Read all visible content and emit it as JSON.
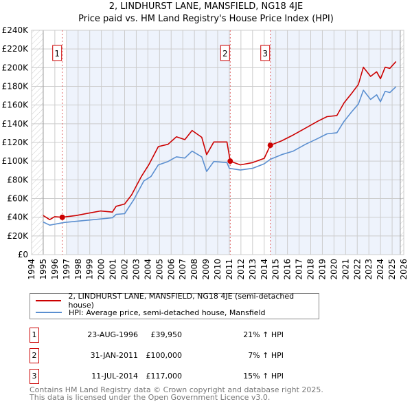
{
  "title_line1": "2, LINDHURST LANE, MANSFIELD, NG18 4JE",
  "title_line2": "Price paid vs. HM Land Registry's House Price Index (HPI)",
  "legend": {
    "red": "2, LINDHURST LANE, MANSFIELD, NG18 4JE (semi-detached house)",
    "blue": "HPI: Average price, semi-detached house, Mansfield"
  },
  "sales": [
    {
      "num": "1",
      "date": "23-AUG-1996",
      "price": "£39,950",
      "hpi": "21% ↑ HPI"
    },
    {
      "num": "2",
      "date": "31-JAN-2011",
      "price": "£100,000",
      "hpi": "7% ↑ HPI"
    },
    {
      "num": "3",
      "date": "11-JUL-2014",
      "price": "£117,000",
      "hpi": "15% ↑ HPI"
    }
  ],
  "footer": {
    "line1": "Contains HM Land Registry data © Crown copyright and database right 2025.",
    "line2": "This data is licensed under the Open Government Licence v3.0."
  },
  "colors": {
    "red": "#cc0000",
    "blue": "#5b8fd0",
    "band": "#eef3fc"
  },
  "chart_data": {
    "type": "line",
    "xlim": [
      1994,
      2026
    ],
    "ylim": [
      0,
      240000
    ],
    "x_ticks": [
      1994,
      1995,
      1996,
      1997,
      1998,
      1999,
      2000,
      2001,
      2002,
      2003,
      2004,
      2005,
      2006,
      2007,
      2008,
      2009,
      2010,
      2011,
      2012,
      2013,
      2014,
      2015,
      2016,
      2017,
      2018,
      2019,
      2020,
      2021,
      2022,
      2023,
      2024,
      2025,
      2026
    ],
    "y_ticks": [
      0,
      20000,
      40000,
      60000,
      80000,
      100000,
      120000,
      140000,
      160000,
      180000,
      200000,
      220000,
      240000
    ],
    "y_tick_labels": [
      "£0",
      "£20K",
      "£40K",
      "£60K",
      "£80K",
      "£100K",
      "£120K",
      "£140K",
      "£160K",
      "£180K",
      "£200K",
      "£220K",
      "£240K"
    ],
    "grid": true,
    "shaded_bands": [
      [
        1997.0,
        2011.08
      ],
      [
        2014.53,
        2025.7
      ]
    ],
    "data_range": [
      1995.0,
      2025.7
    ],
    "sale_points": [
      {
        "label": "1",
        "x": 1996.64,
        "y": 39950
      },
      {
        "label": "2",
        "x": 2011.08,
        "y": 100000
      },
      {
        "label": "3",
        "x": 2014.53,
        "y": 117000
      }
    ],
    "series": [
      {
        "name": "2, LINDHURST LANE, MANSFIELD, NG18 4JE (semi-detached house)",
        "color": "#cc0000",
        "x": [
          1995.0,
          1995.56,
          1995.98,
          1996.64,
          1997.84,
          1998.88,
          1999.92,
          2000.95,
          2001.27,
          2002.0,
          2002.6,
          2003.44,
          2004.07,
          2004.9,
          2005.73,
          2006.45,
          2007.18,
          2007.8,
          2008.63,
          2009.05,
          2009.67,
          2010.8,
          2011.08,
          2011.95,
          2013.0,
          2014.0,
          2014.53,
          2015.5,
          2016.5,
          2017.55,
          2018.6,
          2019.4,
          2020.25,
          2020.87,
          2021.5,
          2022.1,
          2022.53,
          2023.15,
          2023.67,
          2024.0,
          2024.4,
          2024.8,
          2025.33
        ],
        "y": [
          41800,
          37400,
          40600,
          39950,
          41800,
          44300,
          46700,
          45500,
          51700,
          54100,
          64000,
          83600,
          96000,
          115600,
          118000,
          126000,
          123000,
          132800,
          125500,
          107000,
          120500,
          120500,
          100000,
          96000,
          98400,
          103000,
          117000,
          121800,
          128000,
          135300,
          142700,
          147600,
          148800,
          162400,
          172200,
          182000,
          200500,
          190700,
          195600,
          188200,
          200500,
          199300,
          206600
        ]
      },
      {
        "name": "HPI: Average price, semi-detached house, Mansfield",
        "color": "#5b8fd0",
        "x": [
          1995.0,
          1995.56,
          1996.8,
          1998.88,
          2000.95,
          2001.27,
          2002.0,
          2002.8,
          2003.65,
          2004.27,
          2004.9,
          2005.73,
          2006.45,
          2007.18,
          2007.8,
          2008.63,
          2009.05,
          2009.67,
          2010.8,
          2011.0,
          2011.95,
          2013.0,
          2014.0,
          2014.53,
          2015.5,
          2016.5,
          2017.55,
          2018.6,
          2019.4,
          2020.25,
          2020.87,
          2021.5,
          2022.1,
          2022.53,
          2023.15,
          2023.67,
          2024.0,
          2024.4,
          2024.8,
          2025.33
        ],
        "y": [
          34900,
          31500,
          34400,
          36900,
          39400,
          43000,
          43800,
          59000,
          78700,
          83600,
          96000,
          99600,
          104600,
          103300,
          110700,
          104600,
          89000,
          99600,
          98400,
          92300,
          90500,
          92300,
          97200,
          102000,
          107000,
          110700,
          118000,
          124200,
          129200,
          130400,
          142700,
          152500,
          161100,
          175900,
          166000,
          171000,
          163600,
          174700,
          173400,
          179600
        ]
      }
    ]
  }
}
